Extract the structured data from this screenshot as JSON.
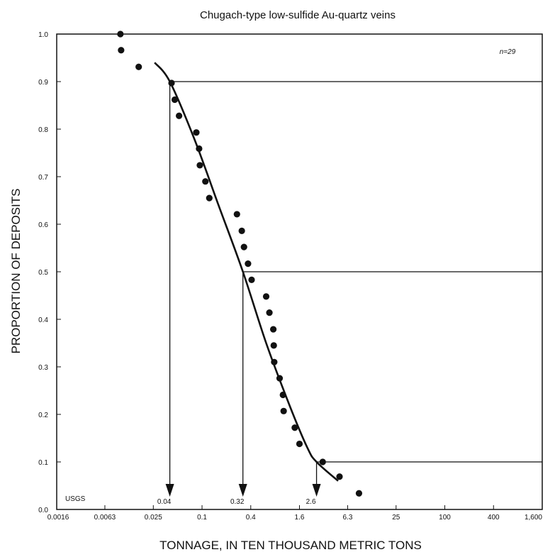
{
  "chart_data": {
    "type": "scatter",
    "title": "Chugach-type low-sulfide Au-quartz veins",
    "xlabel": "TONNAGE, IN TEN THOUSAND METRIC TONS",
    "ylabel": "PROPORTION OF DEPOSITS",
    "x_scale": "log",
    "xlim": [
      0.0016,
      1600
    ],
    "ylim": [
      0.0,
      1.0
    ],
    "x_ticks": [
      {
        "value": 0.0016,
        "label": "0.0016"
      },
      {
        "value": 0.0063,
        "label": "0.0063"
      },
      {
        "value": 0.025,
        "label": "0.025"
      },
      {
        "value": 0.1,
        "label": "0.1"
      },
      {
        "value": 0.4,
        "label": "0.4"
      },
      {
        "value": 1.6,
        "label": "1.6"
      },
      {
        "value": 6.3,
        "label": "6.3"
      },
      {
        "value": 25,
        "label": "25"
      },
      {
        "value": 100,
        "label": "100"
      },
      {
        "value": 400,
        "label": "400"
      },
      {
        "value": 1600,
        "label": "1,600"
      }
    ],
    "y_ticks": [
      {
        "value": 0.0,
        "label": "0.0"
      },
      {
        "value": 0.1,
        "label": "0.1"
      },
      {
        "value": 0.2,
        "label": "0.2"
      },
      {
        "value": 0.3,
        "label": "0.3"
      },
      {
        "value": 0.4,
        "label": "0.4"
      },
      {
        "value": 0.5,
        "label": "0.5"
      },
      {
        "value": 0.6,
        "label": "0.6"
      },
      {
        "value": 0.7,
        "label": "0.7"
      },
      {
        "value": 0.8,
        "label": "0.8"
      },
      {
        "value": 0.9,
        "label": "0.9"
      },
      {
        "value": 1.0,
        "label": "1.0"
      }
    ],
    "annotation_n": "n=29",
    "source_label": "USGS",
    "points": [
      {
        "x": 0.0098,
        "y": 1.0
      },
      {
        "x": 0.01,
        "y": 0.966
      },
      {
        "x": 0.0165,
        "y": 0.931
      },
      {
        "x": 0.042,
        "y": 0.897
      },
      {
        "x": 0.046,
        "y": 0.862
      },
      {
        "x": 0.052,
        "y": 0.828
      },
      {
        "x": 0.085,
        "y": 0.793
      },
      {
        "x": 0.092,
        "y": 0.759
      },
      {
        "x": 0.094,
        "y": 0.724
      },
      {
        "x": 0.11,
        "y": 0.69
      },
      {
        "x": 0.123,
        "y": 0.655
      },
      {
        "x": 0.27,
        "y": 0.621
      },
      {
        "x": 0.31,
        "y": 0.586
      },
      {
        "x": 0.33,
        "y": 0.552
      },
      {
        "x": 0.37,
        "y": 0.517
      },
      {
        "x": 0.41,
        "y": 0.483
      },
      {
        "x": 0.62,
        "y": 0.448
      },
      {
        "x": 0.68,
        "y": 0.414
      },
      {
        "x": 0.76,
        "y": 0.379
      },
      {
        "x": 0.77,
        "y": 0.345
      },
      {
        "x": 0.78,
        "y": 0.31
      },
      {
        "x": 0.91,
        "y": 0.276
      },
      {
        "x": 1.0,
        "y": 0.241
      },
      {
        "x": 1.02,
        "y": 0.207
      },
      {
        "x": 1.4,
        "y": 0.172
      },
      {
        "x": 1.6,
        "y": 0.138
      },
      {
        "x": 3.1,
        "y": 0.1
      },
      {
        "x": 5.0,
        "y": 0.069
      },
      {
        "x": 8.7,
        "y": 0.034
      }
    ],
    "fitted_curve": [
      {
        "x": 0.026,
        "y": 0.94
      },
      {
        "x": 0.04,
        "y": 0.9
      },
      {
        "x": 0.08,
        "y": 0.78
      },
      {
        "x": 0.16,
        "y": 0.64
      },
      {
        "x": 0.32,
        "y": 0.5
      },
      {
        "x": 0.62,
        "y": 0.35
      },
      {
        "x": 1.2,
        "y": 0.22
      },
      {
        "x": 2.0,
        "y": 0.13
      },
      {
        "x": 2.6,
        "y": 0.1
      },
      {
        "x": 4.8,
        "y": 0.06
      }
    ],
    "percentiles": [
      {
        "proportion": 0.9,
        "value": 0.04,
        "label": "0.04"
      },
      {
        "proportion": 0.5,
        "value": 0.32,
        "label": "0.32"
      },
      {
        "proportion": 0.1,
        "value": 2.6,
        "label": "2.6"
      }
    ]
  }
}
